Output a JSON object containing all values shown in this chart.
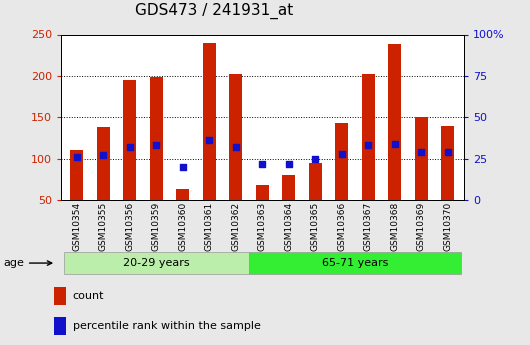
{
  "title": "GDS473 / 241931_at",
  "samples": [
    "GSM10354",
    "GSM10355",
    "GSM10356",
    "GSM10359",
    "GSM10360",
    "GSM10361",
    "GSM10362",
    "GSM10363",
    "GSM10364",
    "GSM10365",
    "GSM10366",
    "GSM10367",
    "GSM10368",
    "GSM10369",
    "GSM10370"
  ],
  "counts": [
    110,
    138,
    195,
    199,
    63,
    240,
    202,
    68,
    80,
    95,
    143,
    202,
    238,
    150,
    140
  ],
  "percentiles": [
    26,
    27,
    32,
    33,
    20,
    36,
    32,
    22,
    22,
    25,
    28,
    33,
    34,
    29,
    29
  ],
  "group1_label": "20-29 years",
  "group1_count": 7,
  "group2_label": "65-71 years",
  "group2_count": 8,
  "age_label": "age",
  "bar_color": "#CC2200",
  "dot_color": "#1111CC",
  "group1_bg": "#BBEEAA",
  "group2_bg": "#33EE33",
  "ylim_left": [
    50,
    250
  ],
  "ylim_right": [
    0,
    100
  ],
  "yticks_left": [
    50,
    100,
    150,
    200,
    250
  ],
  "yticks_right": [
    0,
    25,
    50,
    75,
    100
  ],
  "ytick_labels_right": [
    "0",
    "25",
    "50",
    "75",
    "100%"
  ],
  "plot_bg": "#FFFFFF",
  "background_color": "#E8E8E8",
  "legend_count_label": "count",
  "legend_pct_label": "percentile rank within the sample",
  "title_fontsize": 11,
  "tick_fontsize": 8,
  "label_fontsize": 8
}
